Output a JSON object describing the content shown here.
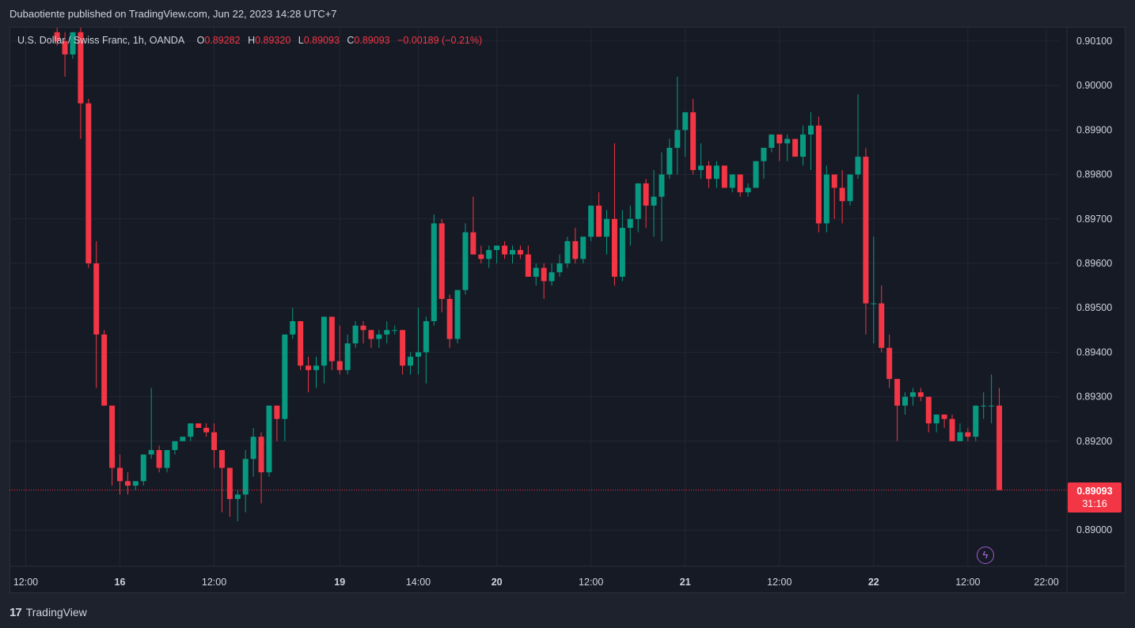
{
  "publish_line": "Dubaotiente published on TradingView.com, Jun 22, 2023 14:28 UTC+7",
  "legend": {
    "symbol": "U.S. Dollar / Swiss Franc, 1h, OANDA",
    "o_label": "O",
    "o_value": "0.89282",
    "h_label": "H",
    "h_value": "0.89320",
    "l_label": "L",
    "l_value": "0.89093",
    "c_label": "C",
    "c_value": "0.89093",
    "change": "−0.00189 (−0.21%)"
  },
  "last_price": {
    "price": "0.89093",
    "countdown": "31:16"
  },
  "footer": {
    "logo": "17",
    "brand": "TradingView"
  },
  "colors": {
    "up": "#089981",
    "down": "#f23645",
    "background": "#161a25",
    "grid": "#232734",
    "text": "#d1d4dc"
  },
  "icons": {
    "bolt": "lightning-icon"
  },
  "chart_data": {
    "type": "candlestick",
    "y_axis": {
      "ticks": [
        "0.90100",
        "0.90000",
        "0.89900",
        "0.89800",
        "0.89700",
        "0.89600",
        "0.89500",
        "0.89400",
        "0.89300",
        "0.89200",
        "0.89000"
      ],
      "range": [
        0.8893,
        0.9012
      ],
      "position": "right"
    },
    "x_axis": {
      "ticks": [
        {
          "label": "12:00",
          "bar": -12,
          "bold": false
        },
        {
          "label": "16",
          "bar": 0,
          "bold": true
        },
        {
          "label": "12:00",
          "bar": 12,
          "bold": false
        },
        {
          "label": "19",
          "bar": 28,
          "bold": true
        },
        {
          "label": "14:00",
          "bar": 38,
          "bold": false
        },
        {
          "label": "20",
          "bar": 48,
          "bold": true
        },
        {
          "label": "12:00",
          "bar": 60,
          "bold": false
        },
        {
          "label": "21",
          "bar": 72,
          "bold": true
        },
        {
          "label": "12:00",
          "bar": 84,
          "bold": false
        },
        {
          "label": "22",
          "bar": 96,
          "bold": true
        },
        {
          "label": "12:00",
          "bar": 108,
          "bold": false
        },
        {
          "label": "22:00",
          "bar": 118,
          "bold": false
        }
      ]
    },
    "first_bar_index": -8,
    "candles": [
      [
        0.9012,
        0.9013,
        0.9009,
        0.901
      ],
      [
        0.901,
        0.9012,
        0.9002,
        0.9007
      ],
      [
        0.9007,
        0.9012,
        0.9006,
        0.9012
      ],
      [
        0.9012,
        0.9013,
        0.8988,
        0.8996
      ],
      [
        0.8996,
        0.8997,
        0.8959,
        0.896
      ],
      [
        0.896,
        0.8965,
        0.8932,
        0.8944
      ],
      [
        0.8944,
        0.8945,
        0.8928,
        0.8928
      ],
      [
        0.8928,
        0.8928,
        0.891,
        0.8914
      ],
      [
        0.8914,
        0.8917,
        0.8908,
        0.8911
      ],
      [
        0.8911,
        0.8913,
        0.8908,
        0.891
      ],
      [
        0.891,
        0.8911,
        0.8909,
        0.8911
      ],
      [
        0.8911,
        0.8917,
        0.891,
        0.8917
      ],
      [
        0.8917,
        0.8932,
        0.8916,
        0.8918
      ],
      [
        0.8918,
        0.8919,
        0.8913,
        0.8914
      ],
      [
        0.8914,
        0.8918,
        0.8913,
        0.8918
      ],
      [
        0.8918,
        0.892,
        0.8917,
        0.892
      ],
      [
        0.892,
        0.8921,
        0.892,
        0.8921
      ],
      [
        0.8921,
        0.8924,
        0.892,
        0.8924
      ],
      [
        0.8924,
        0.8924,
        0.8923,
        0.8923
      ],
      [
        0.8923,
        0.8924,
        0.8921,
        0.8922
      ],
      [
        0.8922,
        0.8924,
        0.8914,
        0.8918
      ],
      [
        0.8918,
        0.8918,
        0.8904,
        0.8914
      ],
      [
        0.8914,
        0.8914,
        0.8903,
        0.8907
      ],
      [
        0.8907,
        0.8909,
        0.8902,
        0.8908
      ],
      [
        0.8908,
        0.8918,
        0.8904,
        0.8916
      ],
      [
        0.8916,
        0.8923,
        0.8912,
        0.8921
      ],
      [
        0.8921,
        0.8922,
        0.8906,
        0.8913
      ],
      [
        0.8913,
        0.8928,
        0.8912,
        0.8928
      ],
      [
        0.8928,
        0.8928,
        0.892,
        0.8925
      ],
      [
        0.8925,
        0.8944,
        0.892,
        0.8944
      ],
      [
        0.8944,
        0.895,
        0.8943,
        0.8947
      ],
      [
        0.8947,
        0.8947,
        0.8936,
        0.8937
      ],
      [
        0.8937,
        0.8939,
        0.8931,
        0.8936
      ],
      [
        0.8936,
        0.8939,
        0.8932,
        0.8937
      ],
      [
        0.8937,
        0.8948,
        0.8933,
        0.8948
      ],
      [
        0.8948,
        0.8948,
        0.8936,
        0.8938
      ],
      [
        0.8938,
        0.8946,
        0.8935,
        0.8936
      ],
      [
        0.8936,
        0.8944,
        0.8935,
        0.8942
      ],
      [
        0.8942,
        0.8947,
        0.8941,
        0.8946
      ],
      [
        0.8946,
        0.8947,
        0.8942,
        0.8945
      ],
      [
        0.8945,
        0.8945,
        0.8941,
        0.8943
      ],
      [
        0.8943,
        0.8945,
        0.8941,
        0.8944
      ],
      [
        0.8944,
        0.8947,
        0.8942,
        0.8945
      ],
      [
        0.8945,
        0.8946,
        0.8944,
        0.8945
      ],
      [
        0.8945,
        0.8945,
        0.8935,
        0.8937
      ],
      [
        0.8937,
        0.894,
        0.8935,
        0.8939
      ],
      [
        0.8939,
        0.895,
        0.8935,
        0.894
      ],
      [
        0.894,
        0.8948,
        0.8933,
        0.8947
      ],
      [
        0.8947,
        0.8971,
        0.8946,
        0.8969
      ],
      [
        0.8969,
        0.897,
        0.8949,
        0.8952
      ],
      [
        0.8952,
        0.8953,
        0.8941,
        0.8943
      ],
      [
        0.8943,
        0.8954,
        0.8942,
        0.8954
      ],
      [
        0.8954,
        0.8969,
        0.8953,
        0.8967
      ],
      [
        0.8967,
        0.8975,
        0.8962,
        0.8962
      ],
      [
        0.8962,
        0.8964,
        0.896,
        0.8961
      ],
      [
        0.8961,
        0.8964,
        0.8959,
        0.8963
      ],
      [
        0.8963,
        0.8964,
        0.896,
        0.8964
      ],
      [
        0.8964,
        0.8965,
        0.8961,
        0.8962
      ],
      [
        0.8962,
        0.8964,
        0.896,
        0.8963
      ],
      [
        0.8963,
        0.8964,
        0.8961,
        0.8962
      ],
      [
        0.8962,
        0.8964,
        0.8957,
        0.8957
      ],
      [
        0.8957,
        0.896,
        0.8955,
        0.8959
      ],
      [
        0.8959,
        0.896,
        0.8952,
        0.8956
      ],
      [
        0.8956,
        0.896,
        0.8955,
        0.8958
      ],
      [
        0.8958,
        0.8962,
        0.8957,
        0.896
      ],
      [
        0.896,
        0.8966,
        0.8959,
        0.8965
      ],
      [
        0.8965,
        0.8968,
        0.896,
        0.8961
      ],
      [
        0.8961,
        0.8966,
        0.896,
        0.8966
      ],
      [
        0.8966,
        0.8973,
        0.8965,
        0.8973
      ],
      [
        0.8973,
        0.8976,
        0.8966,
        0.8966
      ],
      [
        0.8966,
        0.8972,
        0.8962,
        0.897
      ],
      [
        0.897,
        0.8987,
        0.8955,
        0.8957
      ],
      [
        0.8957,
        0.8972,
        0.8956,
        0.8968
      ],
      [
        0.8968,
        0.8973,
        0.8964,
        0.897
      ],
      [
        0.897,
        0.8978,
        0.8967,
        0.8978
      ],
      [
        0.8978,
        0.8979,
        0.8968,
        0.8973
      ],
      [
        0.8973,
        0.8981,
        0.8966,
        0.8975
      ],
      [
        0.8975,
        0.8985,
        0.8965,
        0.898
      ],
      [
        0.898,
        0.8988,
        0.8979,
        0.8986
      ],
      [
        0.8986,
        0.9002,
        0.898,
        0.899
      ],
      [
        0.899,
        0.8994,
        0.8984,
        0.8994
      ],
      [
        0.8994,
        0.8997,
        0.898,
        0.8981
      ],
      [
        0.8981,
        0.8987,
        0.8979,
        0.8982
      ],
      [
        0.8982,
        0.8983,
        0.8977,
        0.8979
      ],
      [
        0.8979,
        0.8983,
        0.8977,
        0.8982
      ],
      [
        0.8982,
        0.8982,
        0.8977,
        0.8977
      ],
      [
        0.8977,
        0.898,
        0.8976,
        0.898
      ],
      [
        0.898,
        0.898,
        0.8975,
        0.8976
      ],
      [
        0.8976,
        0.8978,
        0.8975,
        0.8977
      ],
      [
        0.8977,
        0.8983,
        0.8977,
        0.8983
      ],
      [
        0.8983,
        0.8985,
        0.8979,
        0.8986
      ],
      [
        0.8986,
        0.8989,
        0.8985,
        0.8989
      ],
      [
        0.8989,
        0.8989,
        0.8983,
        0.8987
      ],
      [
        0.8987,
        0.8989,
        0.8983,
        0.8988
      ],
      [
        0.8988,
        0.8988,
        0.8985,
        0.8984
      ],
      [
        0.8984,
        0.8991,
        0.8982,
        0.8989
      ],
      [
        0.8989,
        0.8994,
        0.8981,
        0.8991
      ],
      [
        0.8991,
        0.8993,
        0.8967,
        0.8969
      ],
      [
        0.8969,
        0.8982,
        0.8967,
        0.898
      ],
      [
        0.898,
        0.898,
        0.897,
        0.8977
      ],
      [
        0.8977,
        0.8981,
        0.8969,
        0.8974
      ],
      [
        0.8974,
        0.898,
        0.8973,
        0.898
      ],
      [
        0.898,
        0.8998,
        0.8979,
        0.8984
      ],
      [
        0.8984,
        0.8986,
        0.8944,
        0.8951
      ],
      [
        0.8951,
        0.8966,
        0.8942,
        0.8951
      ],
      [
        0.8951,
        0.8955,
        0.894,
        0.8941
      ],
      [
        0.8941,
        0.8944,
        0.8932,
        0.8934
      ],
      [
        0.8934,
        0.8934,
        0.892,
        0.8928
      ],
      [
        0.8928,
        0.8931,
        0.8926,
        0.893
      ],
      [
        0.893,
        0.8932,
        0.8928,
        0.8931
      ],
      [
        0.8931,
        0.8932,
        0.8929,
        0.893
      ],
      [
        0.893,
        0.893,
        0.8922,
        0.8924
      ],
      [
        0.8924,
        0.8926,
        0.8922,
        0.8926
      ],
      [
        0.8926,
        0.8926,
        0.8923,
        0.8925
      ],
      [
        0.8925,
        0.8926,
        0.892,
        0.892
      ],
      [
        0.892,
        0.8924,
        0.892,
        0.8922
      ],
      [
        0.8922,
        0.8923,
        0.892,
        0.8921
      ],
      [
        0.8921,
        0.8928,
        0.892,
        0.8928
      ],
      [
        0.8928,
        0.8931,
        0.8925,
        0.8928
      ],
      [
        0.8928,
        0.8935,
        0.8924,
        0.8928
      ],
      [
        0.8928,
        0.8932,
        0.8909,
        0.8909
      ]
    ]
  }
}
